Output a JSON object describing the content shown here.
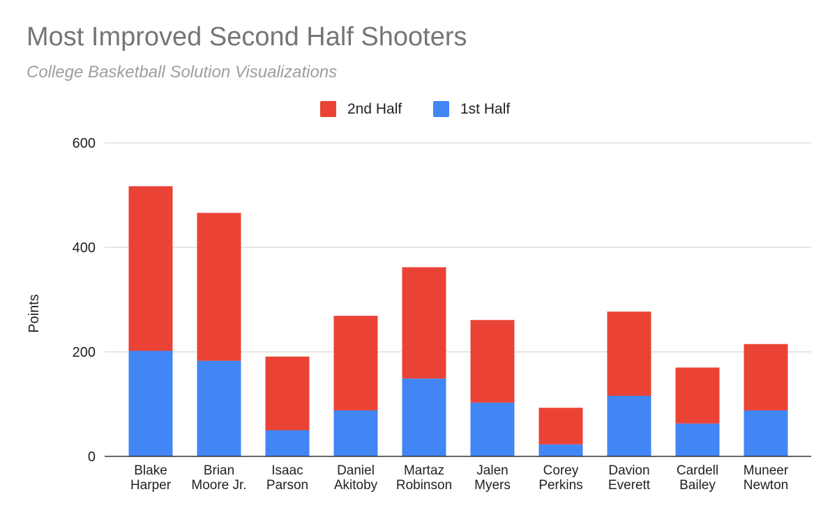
{
  "chart_data": {
    "type": "bar",
    "stacked": true,
    "title": "Most Improved Second Half Shooters",
    "subtitle": "College Basketball Solution Visualizations",
    "ylabel": "Points",
    "xlabel": "",
    "ylim": [
      0,
      600
    ],
    "yticks": [
      0,
      200,
      400,
      600
    ],
    "grid": true,
    "legend_position": "top-center",
    "categories": [
      [
        "Blake",
        "Harper"
      ],
      [
        "Brian",
        "Moore Jr."
      ],
      [
        "Isaac",
        "Parson"
      ],
      [
        "Daniel",
        "Akitoby"
      ],
      [
        "Martaz",
        "Robinson"
      ],
      [
        "Jalen",
        "Myers"
      ],
      [
        "Corey",
        "Perkins"
      ],
      [
        "Davion",
        "Everett"
      ],
      [
        "Cardell",
        "Bailey"
      ],
      [
        "Muneer",
        "Newton"
      ]
    ],
    "series": [
      {
        "name": "1st Half",
        "color": "#4285f4",
        "values": [
          202,
          183,
          50,
          88,
          149,
          103,
          23,
          116,
          63,
          88
        ]
      },
      {
        "name": "2nd Half",
        "color": "#ea4335",
        "values": [
          315,
          283,
          141,
          181,
          213,
          158,
          70,
          161,
          107,
          127
        ]
      }
    ],
    "legend_order": [
      "2nd Half",
      "1st Half"
    ]
  }
}
